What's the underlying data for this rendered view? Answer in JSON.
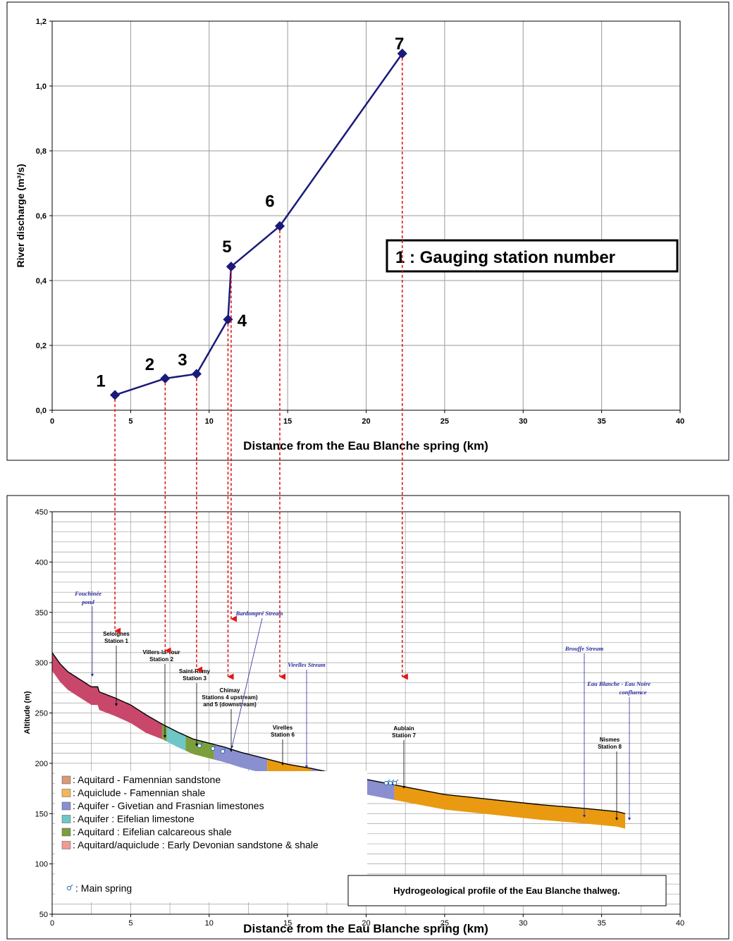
{
  "chart_data": [
    {
      "type": "line",
      "xlabel": "Distance from the Eau Blanche spring (km)",
      "ylabel": "River discharge (m³/s)",
      "xlim": [
        0,
        40
      ],
      "ylim": [
        0,
        1.2
      ],
      "x_ticks": [
        "0",
        "5",
        "10",
        "15",
        "20",
        "25",
        "30",
        "35",
        "40"
      ],
      "y_ticks": [
        "0,0",
        "0,2",
        "0,4",
        "0,6",
        "0,8",
        "1,0",
        "1,2"
      ],
      "grid": true,
      "legend_box": "1 : Gauging station number",
      "color": "#1a1a7a",
      "series": [
        {
          "x": [
            4.0,
            7.2,
            9.2,
            11.2,
            11.4,
            14.5,
            22.3
          ],
          "y": [
            0.047,
            0.098,
            0.112,
            0.28,
            0.443,
            0.568,
            1.1
          ],
          "labels": [
            "1",
            "2",
            "3",
            "4",
            "5",
            "6",
            "7"
          ]
        }
      ]
    },
    {
      "type": "area",
      "title": "Hydrogeological profile of the Eau Blanche thalweg.",
      "xlabel": "Distance from the Eau Blanche spring (km)",
      "ylabel": "Altitude (m)",
      "xlim": [
        0,
        40
      ],
      "ylim": [
        50,
        450
      ],
      "x_ticks": [
        "0",
        "5",
        "10",
        "15",
        "20",
        "25",
        "30",
        "35",
        "40"
      ],
      "y_ticks": [
        "50",
        "100",
        "150",
        "200",
        "250",
        "300",
        "350",
        "400",
        "450"
      ],
      "grid": true,
      "surface_profile": {
        "x": [
          0,
          0.5,
          1.0,
          2.0,
          2.5,
          2.9,
          3.0,
          4.0,
          5.0,
          6.0,
          7.0,
          8.0,
          9.0,
          10.0,
          11.0,
          12.0,
          13.5,
          15.0,
          16.5,
          18.0,
          20.0,
          22.0,
          25.0,
          28.0,
          31.0,
          34.0,
          36.0,
          36.5
        ],
        "y": [
          310,
          299,
          291,
          281,
          276,
          276,
          271,
          265,
          258,
          248,
          239,
          231,
          224,
          220,
          216,
          211,
          205,
          199,
          195,
          190,
          184,
          178,
          169,
          164,
          159,
          155,
          152,
          150
        ]
      },
      "layer_thickness_m": 15,
      "units": [
        {
          "name": "Aquitard/aquiclude : Early Devonian sandstone & shale",
          "x0": 0,
          "x1": 7.0,
          "color": "#c9476b"
        },
        {
          "name": "Aquitard : Eifelian calcareous shale",
          "x0": 7.0,
          "x1": 7.3,
          "color": "#7d9e3c"
        },
        {
          "name": "Aquifer : Eifelian limestone",
          "x0": 7.3,
          "x1": 8.5,
          "color": "#6fc6c6"
        },
        {
          "name": "Aquitard : Eifelian calcareous shale",
          "x0": 8.5,
          "x1": 10.3,
          "color": "#7d9e3c"
        },
        {
          "name": "Aquifer - Givetian and Frasnian limestones",
          "x0": 10.3,
          "x1": 13.7,
          "color": "#8a8fd0"
        },
        {
          "name": "Aquiclude - Famennian shale",
          "x0": 13.7,
          "x1": 16.5,
          "color": "#e99a10"
        },
        {
          "name": "Aquifer - Givetian and Frasnian limestones",
          "x0": 16.5,
          "x1": 21.8,
          "color": "#8a8fd0"
        },
        {
          "name": "Aquiclude - Famennian shale",
          "x0": 21.8,
          "x1": 36.5,
          "color": "#e99a10"
        }
      ],
      "legend": [
        {
          "label": ": Aquitard - Famennian sandstone",
          "color": "#d79a76"
        },
        {
          "label": ": Aquiclude - Famennian shale",
          "color": "#f2b75a"
        },
        {
          "label": ": Aquifer - Givetian and Frasnian limestones",
          "color": "#8a8fd0"
        },
        {
          "label": ": Aquifer : Eifelian limestone",
          "color": "#6fc6c6"
        },
        {
          "label": ": Aquitard : Eifelian calcareous shale",
          "color": "#7d9e3c"
        },
        {
          "label": ": Aquitard/aquiclude : Early Devonian sandstone & shale",
          "color": "#f29a93"
        }
      ],
      "spring_legend": ": Main spring",
      "stations": [
        {
          "line1": "Seloignes",
          "line2": "Station 1"
        },
        {
          "line1": "Villers-la-Tour",
          "line2": "Station 2"
        },
        {
          "line1": "Saint-Remy",
          "line2": "Station 3"
        },
        {
          "line1": "Chimay",
          "line2": "Stations 4 upstream)",
          "line3": "and 5 (downstream)"
        },
        {
          "line1": "Virelles",
          "line2": "Station 6"
        },
        {
          "line1": "Aublain",
          "line2": "Station 7"
        },
        {
          "line1": "Nismes",
          "line2": "Station 8"
        }
      ],
      "streams": [
        {
          "line1": "Fouchinée",
          "line2": "pond"
        },
        {
          "line1": "Bardompré Stream"
        },
        {
          "line1": "Virelles Stream"
        },
        {
          "line1": "Brouffe Stream"
        },
        {
          "line1": "Eau Blanche - Eau Noire",
          "line2": "confluence"
        }
      ]
    }
  ]
}
